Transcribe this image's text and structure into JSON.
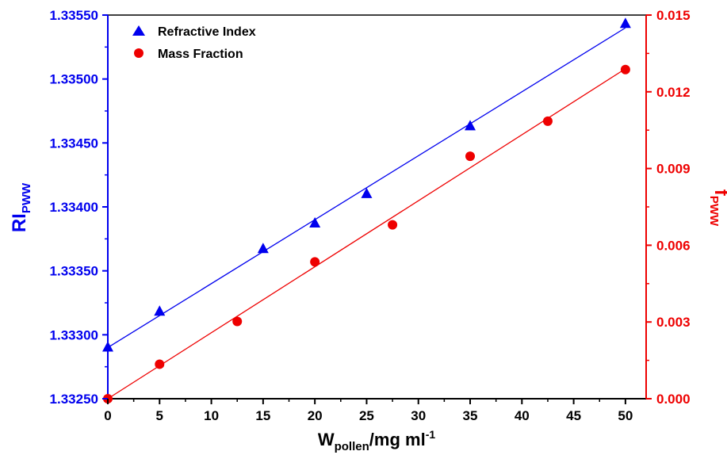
{
  "chart_data": {
    "type": "scatter",
    "title": "",
    "xlabel": {
      "main": "W",
      "sub": "pollen",
      "rest": "/mg ml",
      "sup": "-1"
    },
    "ylabel_left": {
      "main": "RI",
      "sub": "PWW"
    },
    "ylabel_right": {
      "main": "f",
      "sub": "PWW"
    },
    "xlim": [
      0,
      52
    ],
    "ylim_left": [
      1.3325,
      1.3355
    ],
    "ylim_right": [
      0,
      0.015
    ],
    "x_ticks": [
      "0",
      "5",
      "10",
      "15",
      "20",
      "25",
      "30",
      "35",
      "40",
      "45",
      "50"
    ],
    "y_left_ticks": [
      "1.33250",
      "1.33300",
      "1.33350",
      "1.33400",
      "1.33450",
      "1.33500",
      "1.33550"
    ],
    "y_right_ticks": [
      "0.000",
      "0.003",
      "0.006",
      "0.009",
      "0.012",
      "0.015"
    ],
    "legend_position": "top-left",
    "grid": false,
    "colors": {
      "left_axis": "#0000ee",
      "right_axis": "#ee0000",
      "series_1": "#0000ee",
      "series_2": "#ee0000"
    },
    "series": [
      {
        "name": "Refractive Index",
        "axis": "left",
        "marker": "triangle",
        "x": [
          0,
          5,
          15,
          20,
          25,
          35,
          50
        ],
        "y": [
          1.3329,
          1.33318,
          1.33367,
          1.33387,
          1.3341,
          1.33463,
          1.33543
        ],
        "fit": {
          "x": [
            0,
            50
          ],
          "y": [
            1.3329,
            1.3354
          ]
        }
      },
      {
        "name": "Mass Fraction",
        "axis": "right",
        "marker": "circle",
        "x": [
          0,
          5,
          12.5,
          20,
          27.5,
          35,
          42.5,
          50
        ],
        "y": [
          0.0,
          0.00135,
          0.00302,
          0.00535,
          0.0068,
          0.00948,
          0.01085,
          0.01287
        ],
        "fit": {
          "x": [
            0,
            50
          ],
          "y": [
            0.0,
            0.0129
          ]
        }
      }
    ]
  }
}
